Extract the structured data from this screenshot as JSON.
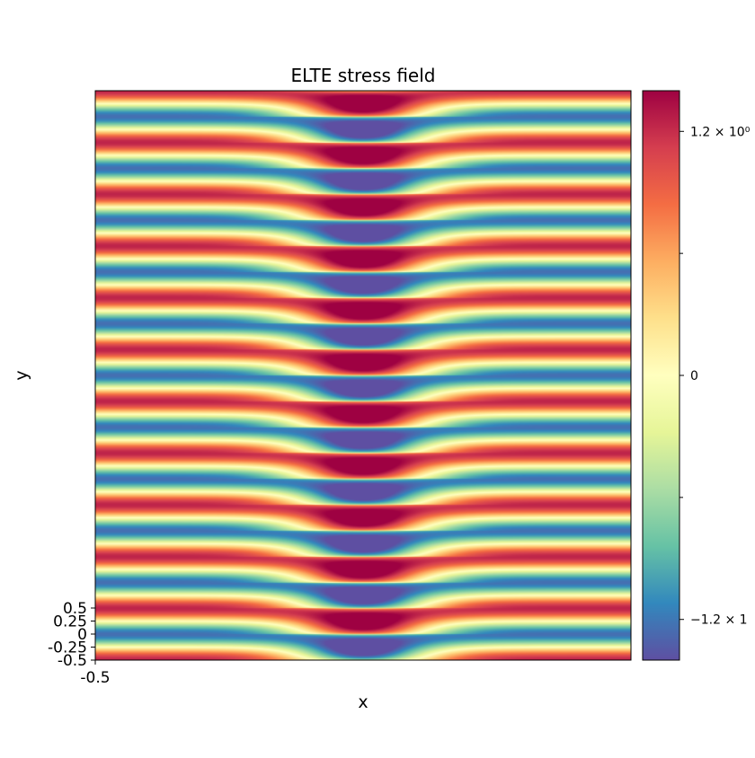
{
  "chart_data": {
    "type": "heatmap",
    "title": "ELTE stress field",
    "xlabel": "x",
    "ylabel": "y",
    "x_ticks": [
      "-0.5"
    ],
    "y_ticks": [
      "-0.5",
      "-0.25",
      "0",
      "0.25",
      "0.5"
    ],
    "y_range": [
      -0.5,
      0.5
    ],
    "bands": 11,
    "colormap": "Spectral_r",
    "colorbar": {
      "tick_labels": [
        "1.2 × 10⁰",
        "0",
        "−1.2 × 1"
      ],
      "tick_values": [
        1.2,
        0,
        -1.2
      ],
      "range": [
        -1.4,
        1.4
      ]
    },
    "grid": false
  }
}
